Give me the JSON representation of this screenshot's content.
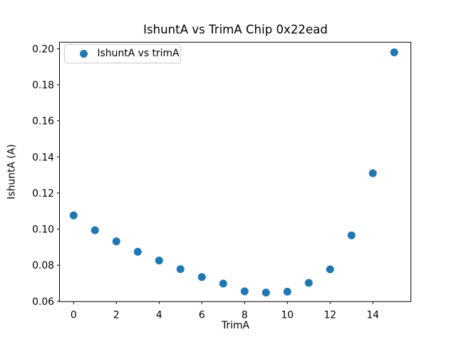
{
  "figure": {
    "title": "IshuntA vs TrimA Chip 0x22ead",
    "xlabel": "TrimA",
    "ylabel": "IshuntA (A)",
    "legend": {
      "label": "IshuntA vs trimA",
      "marker_color": "#1f77b4"
    },
    "background_color": "#ffffff",
    "spine_color": "#000000"
  },
  "chart_data": {
    "type": "scatter",
    "title": "IshuntA vs TrimA Chip 0x22ead",
    "xlabel": "TrimA",
    "ylabel": "IshuntA (A)",
    "legend_entries": [
      "IshuntA vs trimA"
    ],
    "legend_position": "upper left",
    "grid": false,
    "marker": {
      "shape": "circle",
      "color": "#1f77b4",
      "radius_px": 5.5
    },
    "x": [
      0,
      1,
      2,
      3,
      4,
      5,
      6,
      7,
      8,
      9,
      10,
      11,
      12,
      13,
      14,
      15
    ],
    "y": [
      0.1076,
      0.0994,
      0.0932,
      0.0874,
      0.0826,
      0.0778,
      0.0734,
      0.0698,
      0.0655,
      0.0648,
      0.0653,
      0.0702,
      0.0777,
      0.0965,
      0.131,
      0.198
    ],
    "xlim": [
      -0.66,
      15.78
    ],
    "ylim": [
      0.0598,
      0.2036
    ],
    "x_ticks": [
      0,
      2,
      4,
      6,
      8,
      10,
      12,
      14
    ],
    "x_tick_labels": [
      "0",
      "2",
      "4",
      "6",
      "8",
      "10",
      "12",
      "14"
    ],
    "y_ticks": [
      0.06,
      0.08,
      0.1,
      0.12,
      0.14,
      0.16,
      0.18,
      0.2
    ],
    "y_tick_labels": [
      "0.06",
      "0.08",
      "0.10",
      "0.12",
      "0.14",
      "0.16",
      "0.18",
      "0.20"
    ]
  }
}
